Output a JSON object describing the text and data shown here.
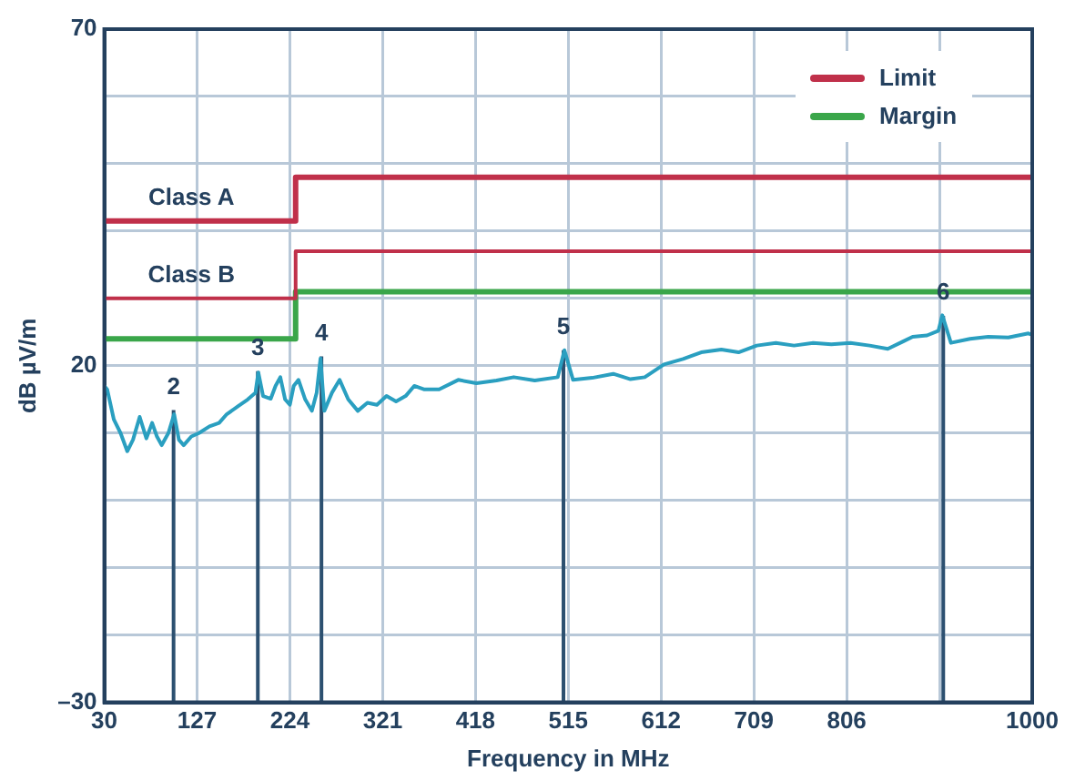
{
  "chart_data": {
    "type": "line",
    "xlabel": "Frequency in MHz",
    "ylabel": "dB µV/m",
    "xlim": [
      30,
      1000
    ],
    "ylim": [
      -30,
      70
    ],
    "xticks": [
      30,
      127,
      224,
      321,
      418,
      515,
      612,
      709,
      806,
      {
        "value": 903,
        "label": null
      },
      1000
    ],
    "yticks": [
      {
        "value": -30,
        "label": "–30"
      },
      {
        "value": -20,
        "label": null
      },
      {
        "value": -10,
        "label": null
      },
      {
        "value": 0,
        "label": null
      },
      {
        "value": 10,
        "label": null
      },
      20,
      {
        "value": 30,
        "label": null
      },
      {
        "value": 40,
        "label": null
      },
      {
        "value": 50,
        "label": null
      },
      {
        "value": 60,
        "label": null
      },
      70
    ],
    "grid": true,
    "legend": "top right",
    "marker": "none",
    "line_style": "solid",
    "series": [
      {
        "name": "Limit",
        "color": "#c0304a",
        "x": [
          30,
          230,
          230,
          1000
        ],
        "values": [
          41.5,
          41.5,
          48,
          48
        ]
      },
      {
        "color": "#c0304a",
        "x": [
          30,
          230,
          230,
          1000
        ],
        "values": [
          30,
          30,
          37,
          37
        ]
      },
      {
        "name": "Margin",
        "color": "#3aa64a",
        "x": [
          30,
          230,
          230,
          1000
        ],
        "values": [
          24,
          24,
          31,
          31
        ]
      },
      {
        "color": "#2a9fc0",
        "x": [
          30,
          33,
          40,
          47,
          54,
          60,
          67,
          74,
          80,
          85,
          90,
          97,
          103,
          108,
          113,
          121,
          129,
          140,
          150,
          158,
          170,
          180,
          188,
          191,
          196,
          204,
          209,
          214,
          219,
          224,
          228,
          233,
          240,
          247,
          252,
          256,
          260,
          268,
          276,
          285,
          295,
          305,
          315,
          325,
          335,
          345,
          354,
          364,
          374,
          380,
          400,
          419,
          440,
          458,
          480,
          504,
          511,
          520,
          540,
          562,
          580,
          595,
          615,
          635,
          654,
          675,
          693,
          712,
          732,
          751,
          771,
          790,
          810,
          830,
          849,
          865,
          875,
          890,
          902,
          906,
          915,
          935,
          954,
          975,
          996,
          1000
        ],
        "values": [
          17,
          16.5,
          12,
          10,
          7.3,
          9,
          12.4,
          9.2,
          11.5,
          9.5,
          8.2,
          10,
          12.8,
          9,
          8.2,
          9.5,
          10,
          11,
          11.5,
          12.8,
          14,
          15,
          16,
          19,
          15.5,
          15.1,
          17,
          18.3,
          15,
          14.2,
          17,
          17.9,
          15,
          13.3,
          16,
          21.1,
          13.3,
          16,
          17.9,
          15,
          13.3,
          14.5,
          14.2,
          15.5,
          14.7,
          15.5,
          17,
          16.5,
          16.5,
          16.5,
          17.9,
          17.4,
          17.8,
          18.3,
          17.8,
          18.3,
          22.3,
          17.9,
          18.2,
          18.8,
          18,
          18.3,
          20.2,
          21,
          22,
          22.4,
          22,
          23,
          23.4,
          23,
          23.4,
          23.2,
          23.4,
          23,
          22.5,
          23.6,
          24.3,
          24.5,
          25.2,
          27.5,
          23.4,
          24,
          24.3,
          24.2,
          24.8,
          24.6
        ]
      },
      {
        "color": "#2c5070",
        "x": [
          102.4,
          102.4,
          null,
          190.5,
          190.5,
          null,
          257,
          257,
          null,
          510,
          510,
          null,
          907,
          907
        ],
        "values": [
          -30,
          13.4,
          null,
          -30,
          19.2,
          null,
          -30,
          21.4,
          null,
          -30,
          22.3,
          null,
          -30,
          27.4
        ]
      }
    ],
    "annotations": [
      {
        "text": "Class A",
        "x": 121,
        "y": 41.5
      },
      {
        "text": "Class B",
        "x": 121,
        "y": 30
      },
      {
        "text": "2",
        "x": 102.4,
        "y": 13.4
      },
      {
        "text": "3",
        "x": 190.5,
        "y": 19.2
      },
      {
        "text": "4",
        "x": 257,
        "y": 21.4
      },
      {
        "text": "5",
        "x": 510,
        "y": 22.3
      },
      {
        "text": "6",
        "x": 907,
        "y": 27.4
      }
    ]
  }
}
